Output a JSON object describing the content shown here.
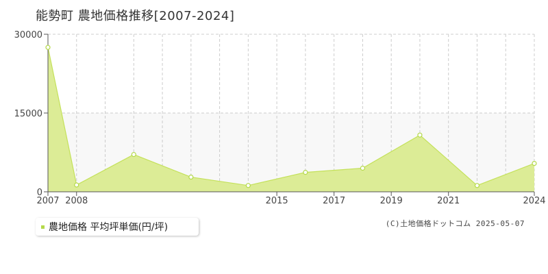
{
  "title": "能勢町 農地価格推移[2007-2024]",
  "legend": {
    "label": "農地価格 平均坪単価(円/坪)"
  },
  "copyright": "(C)土地価格ドットコム 2025-05-07",
  "colors": {
    "fill": "#dcec96",
    "line": "#c4e15a",
    "marker": "#b4d94a",
    "grid": "#cccccc",
    "band": "#f8f8f8"
  },
  "chart_data": {
    "type": "area",
    "title": "能勢町 農地価格推移[2007-2024]",
    "xlabel": "",
    "ylabel": "",
    "ylim": [
      0,
      30000
    ],
    "xlim": [
      2007,
      2024
    ],
    "yticks": [
      0,
      15000,
      30000
    ],
    "xticks": [
      2007,
      2008,
      2015,
      2017,
      2019,
      2021,
      2024
    ],
    "grid": true,
    "legend_position": "bottom-left",
    "series": [
      {
        "name": "農地価格 平均坪単価(円/坪)",
        "x": [
          2007,
          2008,
          2010,
          2012,
          2014,
          2016,
          2018,
          2020,
          2022,
          2024
        ],
        "values": [
          27500,
          1300,
          7100,
          2800,
          1200,
          3700,
          4500,
          10800,
          1200,
          5400
        ]
      }
    ]
  }
}
